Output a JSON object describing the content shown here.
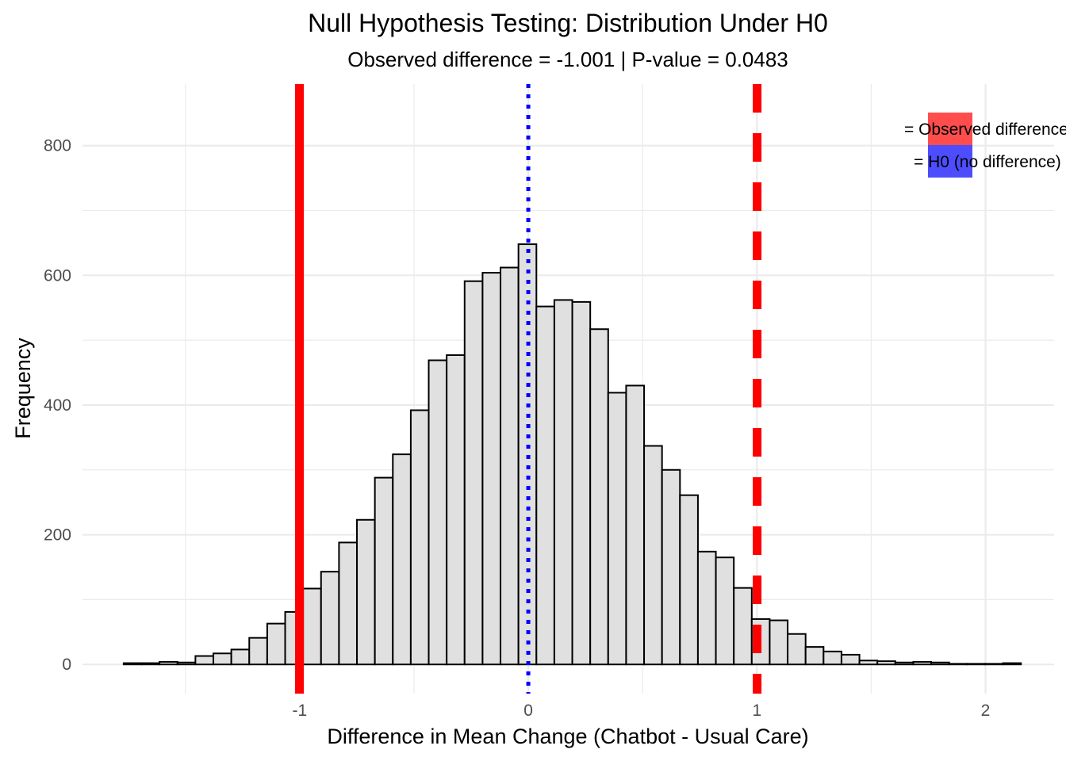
{
  "chart_data": {
    "type": "bar",
    "title": "Null Hypothesis Testing: Distribution Under H0",
    "subtitle": "Observed difference = -1.001 | P-value = 0.0483",
    "xlabel": "Difference in Mean Change (Chatbot - Usual Care)",
    "ylabel": "Frequency",
    "xlim": [
      -1.95,
      2.3
    ],
    "ylim": [
      -45,
      895
    ],
    "x_ticks": [
      -1,
      0,
      1,
      2
    ],
    "x_tick_labels": [
      "-1",
      "0",
      "1",
      "2"
    ],
    "y_ticks": [
      0,
      200,
      400,
      600,
      800
    ],
    "y_tick_labels": [
      "0",
      "200",
      "400",
      "600",
      "800"
    ],
    "grid": true,
    "bin_start": -1.77,
    "bin_width": 0.0785,
    "values": [
      2,
      2,
      4,
      3,
      13,
      17,
      23,
      41,
      63,
      81,
      117,
      143,
      188,
      223,
      288,
      324,
      392,
      469,
      477,
      591,
      604,
      612,
      648,
      552,
      562,
      559,
      517,
      419,
      430,
      337,
      300,
      261,
      174,
      165,
      118,
      70,
      68,
      47,
      27,
      20,
      15,
      6,
      5,
      3,
      4,
      3,
      1,
      1,
      1,
      2
    ],
    "fill_color": "#e0e0e0",
    "edge_color": "#000000",
    "reference_lines": [
      {
        "x": -1.001,
        "color": "#ff0000",
        "style": "solid"
      },
      {
        "x": 1.001,
        "color": "#ff0000",
        "style": "dashed"
      },
      {
        "x": 0,
        "color": "#0000ff",
        "style": "dotted"
      }
    ],
    "legend": {
      "position": "top-right",
      "entries": [
        {
          "label": "= Observed difference",
          "color": "#ff4d4d"
        },
        {
          "label": "= H0 (no difference)",
          "color": "#4d4dff"
        }
      ]
    }
  }
}
